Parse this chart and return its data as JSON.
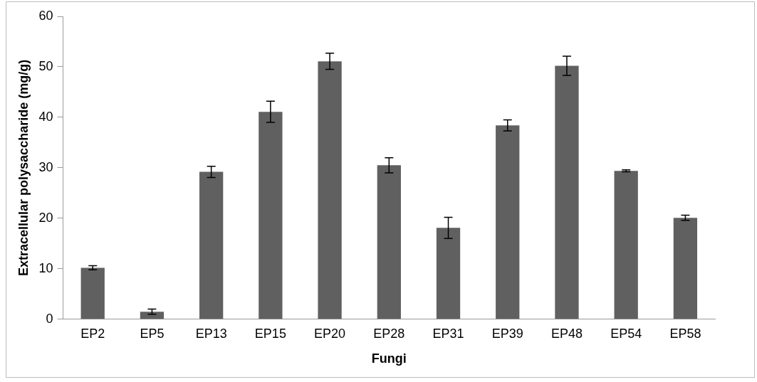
{
  "chart_data": {
    "type": "bar",
    "xlabel": "Fungi",
    "ylabel": "Extracellular polysaccharide (mg/g)",
    "categories": [
      "EP2",
      "EP5",
      "EP13",
      "EP15",
      "EP20",
      "EP28",
      "EP31",
      "EP39",
      "EP48",
      "EP54",
      "EP58"
    ],
    "values": [
      10.2,
      1.5,
      29.2,
      41.1,
      51.1,
      30.5,
      18.1,
      38.4,
      50.2,
      29.4,
      20.1
    ],
    "errors": [
      0.4,
      0.5,
      1.1,
      2.1,
      1.6,
      1.5,
      2.1,
      1.1,
      1.9,
      0.2,
      0.5
    ],
    "color": "#606060",
    "ylim": [
      0,
      60
    ],
    "yticks": [
      0,
      10,
      20,
      30,
      40,
      50,
      60
    ],
    "grid": false,
    "legend": false
  }
}
